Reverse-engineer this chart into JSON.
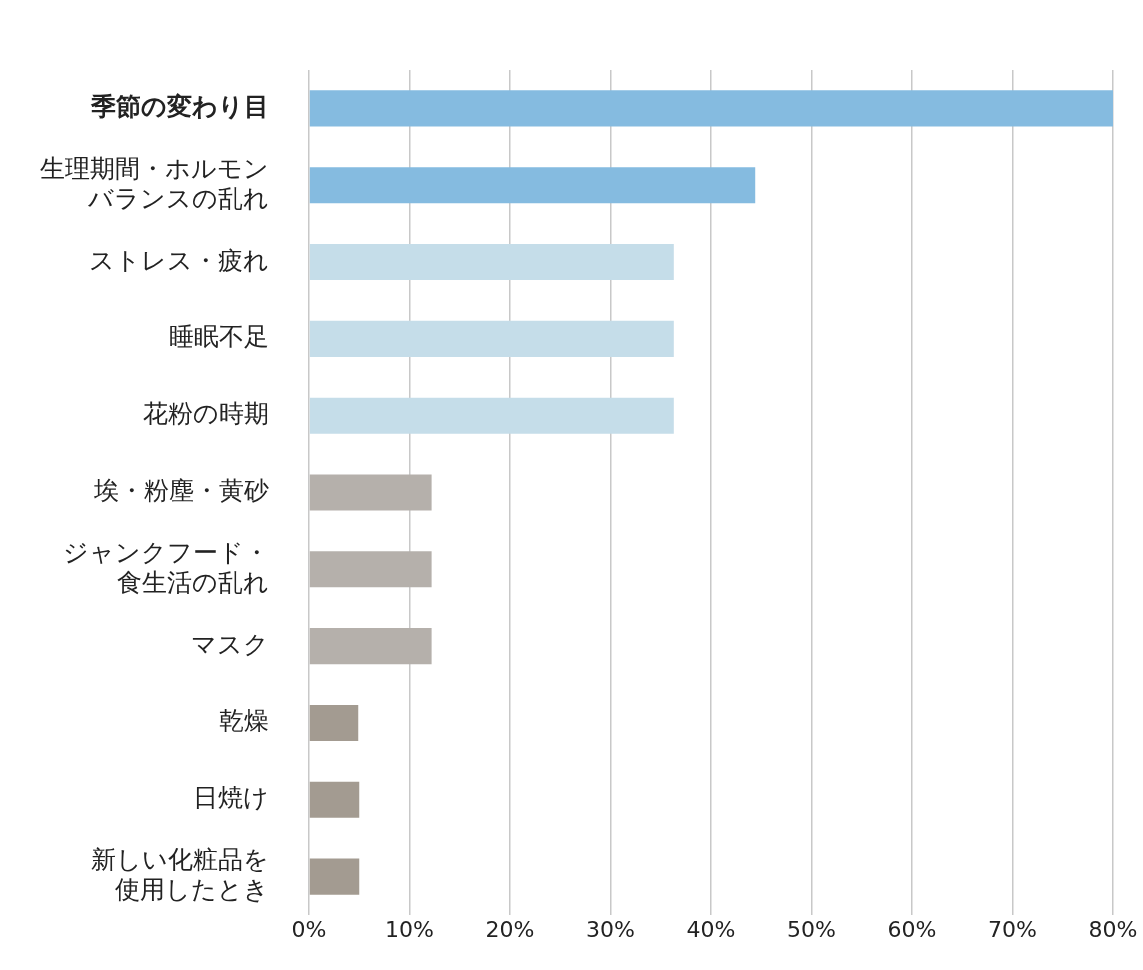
{
  "chart_data": {
    "type": "bar",
    "orientation": "horizontal",
    "categories": [
      "季節の変わり目",
      "生理期間・ホルモンバランスの乱れ",
      "ストレス・疲れ",
      "睡眠不足",
      "花粉の時期",
      "埃・粉塵・黄砂",
      "ジャンクフード・食生活の乱れ",
      "マスク",
      "乾燥",
      "日焼け",
      "新しい化粧品を使用したとき"
    ],
    "values": [
      80,
      44.4,
      36.3,
      36.3,
      36.3,
      12.2,
      12.2,
      12.2,
      4.9,
      5.0,
      5.0
    ],
    "colors": [
      "#85bbe0",
      "#85bbe0",
      "#c5dde9",
      "#c5dde9",
      "#c5dde9",
      "#b5b0ab",
      "#b5b0ab",
      "#b5b0ab",
      "#a39b91",
      "#a39b91",
      "#a39b91"
    ],
    "xlim": [
      0,
      80
    ],
    "xticks": [
      {
        "value": 0,
        "label": "0%"
      },
      {
        "value": 10,
        "label": "10%"
      },
      {
        "value": 20,
        "label": "20%"
      },
      {
        "value": 30,
        "label": "30%"
      },
      {
        "value": 40,
        "label": "40%"
      },
      {
        "value": 50,
        "label": "50%"
      },
      {
        "value": 60,
        "label": "60%"
      },
      {
        "value": 70,
        "label": "70%"
      },
      {
        "value": 80,
        "label": "80%"
      }
    ],
    "grid": "x"
  }
}
